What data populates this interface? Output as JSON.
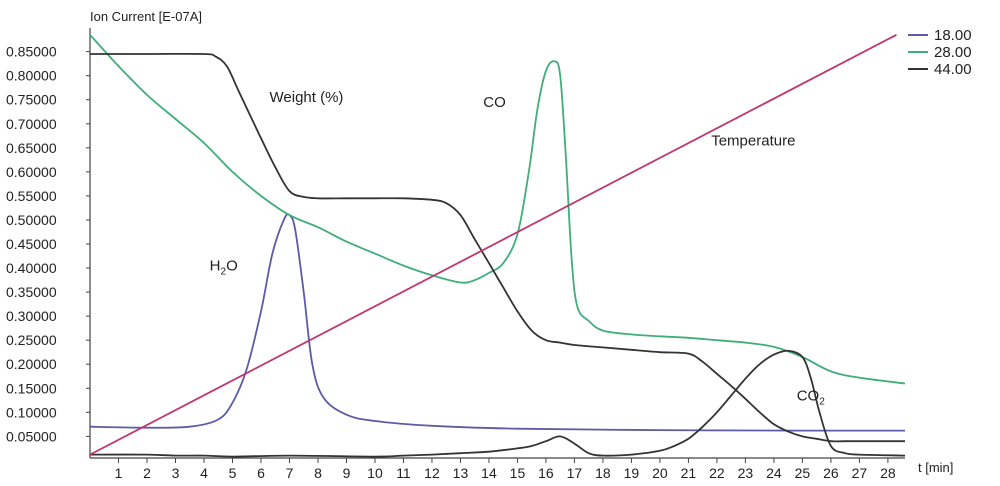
{
  "chart_data": {
    "type": "line",
    "ylabel": "Ion Current [E-07A]",
    "xlabel": "t [min]",
    "xlim": [
      0,
      28.6
    ],
    "ylim": [
      0.005,
      0.895
    ],
    "y_ticks": [
      0.05,
      0.1,
      0.15,
      0.2,
      0.25,
      0.3,
      0.35,
      0.4,
      0.45,
      0.5,
      0.55,
      0.6,
      0.65,
      0.7,
      0.75,
      0.8,
      0.85
    ],
    "y_tick_labels": [
      "0.05000",
      "0.10000",
      "0.15000",
      "0.20000",
      "0.25000",
      "0.30000",
      "0.35000",
      "0.40000",
      "0.45000",
      "0.50000",
      "0.55000",
      "0.60000",
      "0.65000",
      "0.70000",
      "0.75000",
      "0.80000",
      "0.85000"
    ],
    "x_ticks": [
      1,
      2,
      3,
      4,
      5,
      6,
      7,
      8,
      9,
      10,
      11,
      12,
      13,
      14,
      15,
      16,
      17,
      18,
      19,
      20,
      21,
      22,
      23,
      24,
      25,
      26,
      27,
      28
    ],
    "x_tick_labels": [
      "1",
      "2",
      "3",
      "4",
      "5",
      "6",
      "7",
      "8",
      "9",
      "10",
      "11",
      "12",
      "13",
      "14",
      "15",
      "16",
      "17",
      "18",
      "19",
      "20",
      "21",
      "22",
      "23",
      "24",
      "25",
      "26",
      "27",
      "28"
    ],
    "legend": {
      "position": "top-right",
      "entries": [
        {
          "label": "18.00",
          "color": "#5b5ba8"
        },
        {
          "label": "28.00",
          "color": "#3fae78"
        },
        {
          "label": "44.00",
          "color": "#333333"
        }
      ]
    },
    "annotations": [
      {
        "text": "Weight (%)",
        "x": 6.3,
        "y": 0.745
      },
      {
        "text": "CO",
        "x": 13.8,
        "y": 0.735
      },
      {
        "text": "Temperature",
        "x": 21.8,
        "y": 0.655
      },
      {
        "text": "H",
        "sub": "2",
        "tail": "O",
        "x": 4.2,
        "y": 0.395
      },
      {
        "text": "CO",
        "sub": "2",
        "x": 24.8,
        "y": 0.125
      }
    ],
    "series": [
      {
        "color": "#5b5ba8",
        "x": [
          0,
          2,
          3.5,
          4.5,
          5,
          5.5,
          6,
          6.4,
          6.8,
          7.0,
          7.2,
          7.5,
          7.8,
          8.2,
          9,
          10,
          12,
          15,
          20,
          25,
          28.6
        ],
        "y": [
          0.07,
          0.068,
          0.07,
          0.085,
          0.12,
          0.19,
          0.31,
          0.43,
          0.5,
          0.51,
          0.48,
          0.35,
          0.2,
          0.13,
          0.095,
          0.082,
          0.072,
          0.066,
          0.063,
          0.062,
          0.062
        ]
      },
      {
        "color": "#3fae78",
        "x": [
          0,
          1,
          2,
          3,
          4,
          5,
          6,
          7,
          8,
          9,
          10,
          11,
          12,
          13,
          13.5,
          14,
          14.5,
          15,
          15.4,
          15.7,
          16,
          16.3,
          16.5,
          16.7,
          16.9,
          17.1,
          17.5,
          18,
          19,
          20,
          21,
          22,
          23,
          24,
          25,
          26,
          27,
          28.6
        ],
        "y": [
          0.885,
          0.82,
          0.76,
          0.71,
          0.66,
          0.6,
          0.55,
          0.51,
          0.485,
          0.455,
          0.43,
          0.405,
          0.385,
          0.37,
          0.375,
          0.39,
          0.41,
          0.47,
          0.6,
          0.73,
          0.81,
          0.83,
          0.8,
          0.63,
          0.42,
          0.32,
          0.29,
          0.27,
          0.262,
          0.258,
          0.255,
          0.25,
          0.245,
          0.236,
          0.215,
          0.185,
          0.172,
          0.16
        ]
      },
      {
        "color": "#333333",
        "x": [
          0,
          2,
          4,
          4.4,
          4.8,
          5.2,
          5.6,
          6,
          6.5,
          7,
          7.5,
          8,
          9,
          10,
          11,
          12,
          12.5,
          13,
          13.5,
          14,
          14.5,
          15,
          15.5,
          16,
          16.5,
          17,
          18,
          19,
          20,
          21,
          21.5,
          22,
          22.5,
          23,
          23.5,
          24,
          24.5,
          25,
          25.5,
          26,
          26.5,
          27,
          28.6
        ],
        "y": [
          0.845,
          0.845,
          0.845,
          0.84,
          0.82,
          0.77,
          0.72,
          0.67,
          0.61,
          0.56,
          0.548,
          0.545,
          0.545,
          0.545,
          0.545,
          0.542,
          0.535,
          0.51,
          0.46,
          0.41,
          0.36,
          0.31,
          0.27,
          0.25,
          0.245,
          0.24,
          0.235,
          0.23,
          0.225,
          0.222,
          0.205,
          0.18,
          0.155,
          0.128,
          0.1,
          0.075,
          0.06,
          0.05,
          0.045,
          0.04,
          0.04,
          0.04,
          0.04
        ]
      },
      {
        "color": "#333333",
        "x": [
          0,
          2,
          3,
          4,
          5,
          7,
          10,
          11,
          12,
          13,
          14,
          15,
          15.5,
          16,
          16.5,
          17,
          17.5,
          18,
          19,
          20,
          20.5,
          21,
          21.5,
          22,
          22.5,
          23,
          23.5,
          24,
          24.5,
          25,
          25.3,
          25.6,
          26,
          26.5,
          27,
          28.6
        ],
        "y": [
          0.012,
          0.012,
          0.01,
          0.01,
          0.008,
          0.01,
          0.008,
          0.01,
          0.012,
          0.015,
          0.018,
          0.025,
          0.03,
          0.04,
          0.05,
          0.035,
          0.015,
          0.01,
          0.012,
          0.02,
          0.03,
          0.045,
          0.07,
          0.1,
          0.135,
          0.17,
          0.2,
          0.22,
          0.228,
          0.215,
          0.17,
          0.1,
          0.03,
          0.015,
          0.012,
          0.01
        ]
      },
      {
        "color": "#c0366e",
        "x": [
          0,
          28.3
        ],
        "y": [
          0.012,
          0.885
        ]
      }
    ]
  }
}
